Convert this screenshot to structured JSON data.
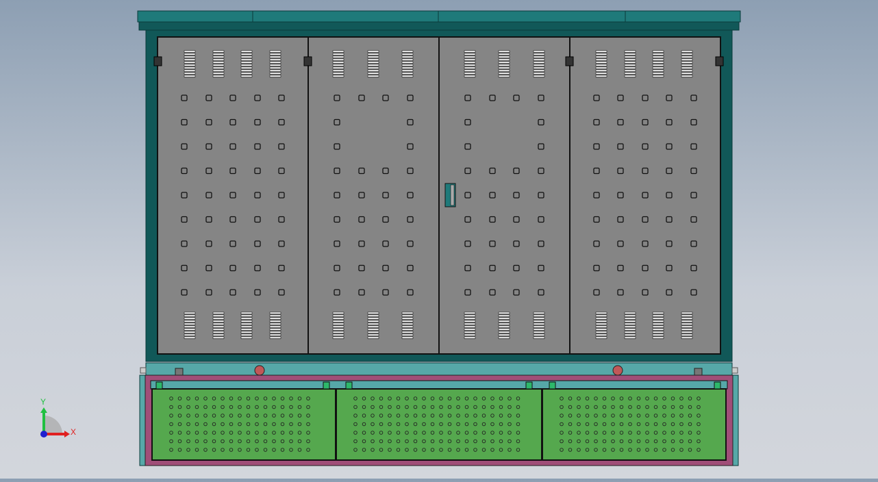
{
  "model_view": {
    "colors": {
      "background_top": "#8d9fb3",
      "background_bottom": "#d3d6dc",
      "roof": "#1f7a7a",
      "frame": "#115858",
      "door": "#858585",
      "base_strip": "#56a8a8",
      "base_frame": "#a04e78",
      "base_panel": "#55a84e",
      "indicator_light": "#c05858"
    },
    "door_count": 4,
    "base_panel_count": 3,
    "door_handle_icon": "handle-icon"
  },
  "triad": {
    "x_label": "X",
    "y_label": "Y",
    "x_color": "#e02020",
    "y_color": "#20c040",
    "z_color": "#2020d0"
  }
}
